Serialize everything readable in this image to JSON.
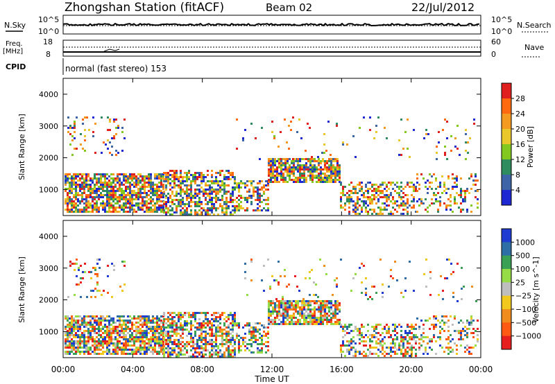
{
  "header": {
    "station": "Zhongshan Station (fitACF)",
    "beam": "Beam 02",
    "date": "22/Jul/2012",
    "cpid_text": "normal (fast stereo) 153"
  },
  "labels": {
    "nsky": "N.Sky",
    "nsky_top": "10^5",
    "nsky_bottom": "10^0",
    "nsearch": "N.Search",
    "nsearch_top": "10^5",
    "nsearch_bottom": "10^0",
    "freq": "Freq.",
    "freq_unit": "[MHz]",
    "freq_top": "18",
    "freq_bottom": "8",
    "nave": "Nave",
    "nave_top": "60",
    "nave_bottom": "0",
    "cpid": "CPID"
  },
  "chart_data": [
    {
      "type": "heatmap",
      "name": "power",
      "ylabel": "Slant Range [km]",
      "ylim": [
        180,
        4500
      ],
      "yticks": [
        1000,
        2000,
        3000,
        4000
      ],
      "colorbar_label": "Power [dB]",
      "colorbar_ticks": [
        "28",
        "24",
        "20",
        "16",
        "12",
        "8",
        "4"
      ],
      "colorbar_colors": [
        "#e0201e",
        "#ff6a10",
        "#f59a20",
        "#eac82c",
        "#82c81e",
        "#2e8c5e",
        "#3c64a6",
        "#1e28d2"
      ]
    },
    {
      "type": "heatmap",
      "name": "velocity",
      "ylabel": "Slant Range [km]",
      "xlabel": "Time UT",
      "ylim": [
        180,
        4500
      ],
      "yticks": [
        1000,
        2000,
        3000,
        4000
      ],
      "xticks": [
        "00:00",
        "04:00",
        "08:00",
        "12:00",
        "16:00",
        "20:00",
        "00:00"
      ],
      "colorbar_label": "Velocity [m s^-1]",
      "colorbar_ticks": [
        "1000",
        "500",
        "100",
        "25",
        "−25",
        "−100",
        "−500",
        "−1000"
      ],
      "colorbar_colors": [
        "#1e3cd2",
        "#2e6ea6",
        "#3aa054",
        "#96dc46",
        "#bebebe",
        "#f0c81e",
        "#f08c1e",
        "#ff5a14",
        "#e61e1e"
      ]
    }
  ]
}
